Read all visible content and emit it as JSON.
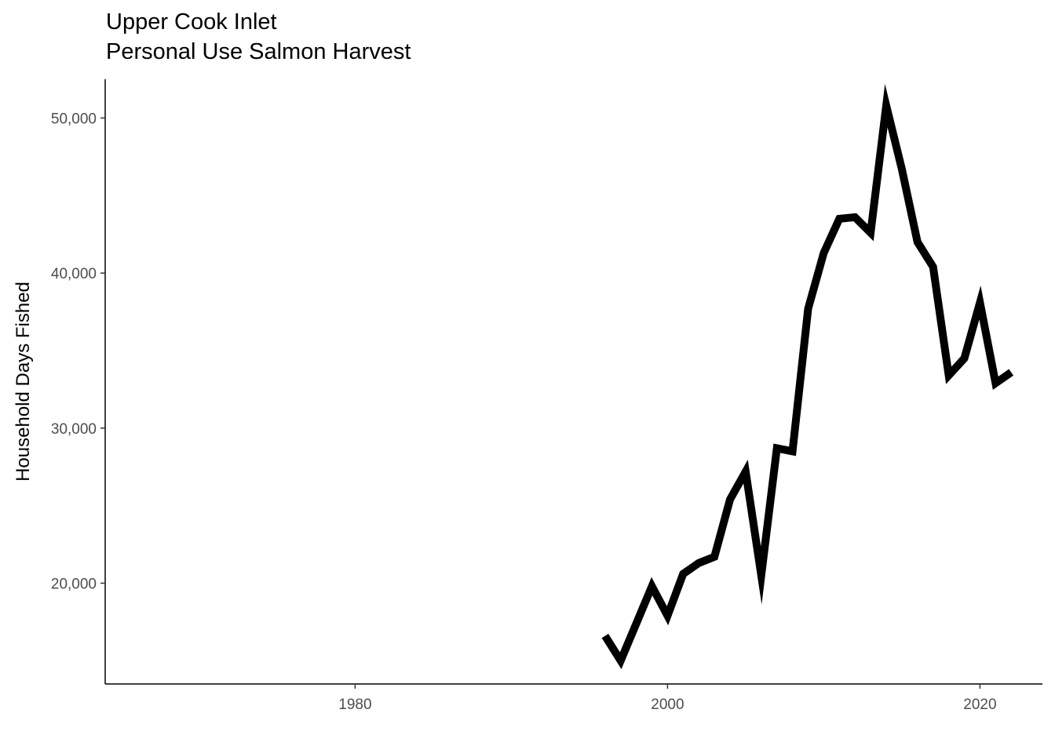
{
  "chart_data": {
    "type": "line",
    "title": "Upper Cook Inlet",
    "subtitle": "Personal Use Salmon Harvest",
    "xlabel": "",
    "ylabel": "Household Days Fished",
    "xlim": [
      1964,
      2024
    ],
    "ylim": [
      13500,
      52500
    ],
    "x_ticks": [
      1980,
      2000,
      2020
    ],
    "y_ticks": [
      20000,
      30000,
      40000,
      50000
    ],
    "x_tick_labels": [
      "1980",
      "2000",
      "2020"
    ],
    "y_tick_labels": [
      "20,000",
      "30,000",
      "40,000",
      "50,000"
    ],
    "grid": false,
    "legend": "none",
    "line_color": "#000000",
    "series": [
      {
        "x": [
          1996,
          1997,
          1998,
          1999,
          2000,
          2001,
          2002,
          2003,
          2004,
          2005,
          2006,
          2007,
          2008,
          2009,
          2010,
          2011,
          2012,
          2013,
          2014,
          2015,
          2016,
          2017,
          2018,
          2019,
          2020,
          2021,
          2022
        ],
        "values": [
          16600,
          15000,
          17400,
          19800,
          17900,
          20600,
          21300,
          21700,
          25400,
          27200,
          20500,
          28700,
          28500,
          37700,
          41300,
          43500,
          43600,
          42600,
          50800,
          46700,
          42000,
          40400,
          33400,
          34500,
          38100,
          32900,
          33600
        ]
      }
    ]
  }
}
